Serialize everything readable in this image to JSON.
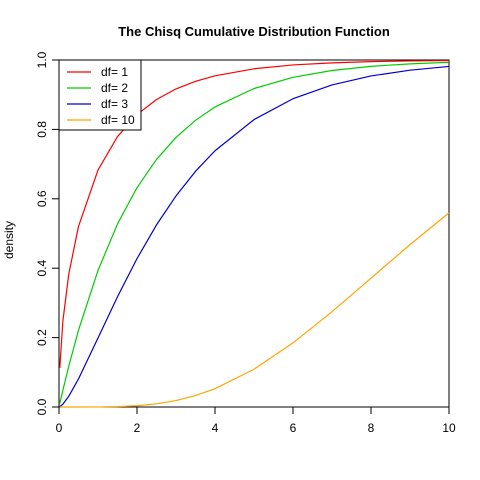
{
  "chart_data": {
    "type": "line",
    "title": "The Chisq Cumulative Distribution Function",
    "ylabel": "density",
    "x": [
      0.02,
      0.1,
      0.25,
      0.5,
      1,
      1.5,
      2,
      2.5,
      3,
      3.5,
      4,
      5,
      6,
      7,
      8,
      9,
      10
    ],
    "series": [
      {
        "name": "df= 1",
        "color": "#ff0000",
        "values": [
          0.1125,
          0.2482,
          0.3829,
          0.5205,
          0.6827,
          0.7793,
          0.8427,
          0.8862,
          0.9167,
          0.9386,
          0.9545,
          0.9747,
          0.9857,
          0.9918,
          0.9953,
          0.9973,
          0.9984
        ]
      },
      {
        "name": "df= 2",
        "color": "#00cd00",
        "values": [
          0.00995,
          0.0488,
          0.1175,
          0.2212,
          0.3935,
          0.5276,
          0.6321,
          0.7135,
          0.7769,
          0.8262,
          0.8647,
          0.9179,
          0.9502,
          0.9698,
          0.9817,
          0.9889,
          0.9933
        ]
      },
      {
        "name": "df= 3",
        "color": "#0000cd",
        "values": [
          0.0008,
          0.0082,
          0.0308,
          0.0811,
          0.1987,
          0.3177,
          0.4276,
          0.5248,
          0.6083,
          0.6792,
          0.7385,
          0.8282,
          0.8884,
          0.9281,
          0.954,
          0.9707,
          0.9814
        ]
      },
      {
        "name": "df= 10",
        "color": "#ffa500",
        "values": [
          0,
          0,
          0,
          0,
          0.0002,
          0.001,
          0.0037,
          0.0091,
          0.0186,
          0.0329,
          0.0527,
          0.1088,
          0.1847,
          0.2746,
          0.3712,
          0.4679,
          0.5595
        ]
      }
    ],
    "xlim": [
      0,
      10
    ],
    "ylim": [
      0,
      1
    ],
    "xticks": [
      0,
      2,
      4,
      6,
      8,
      10
    ],
    "yticks": [
      {
        "value": 0,
        "label": "0.0"
      },
      0.2,
      0.4,
      0.6,
      0.8,
      {
        "value": 1,
        "label": "1.0"
      }
    ],
    "legend": "top-left"
  }
}
